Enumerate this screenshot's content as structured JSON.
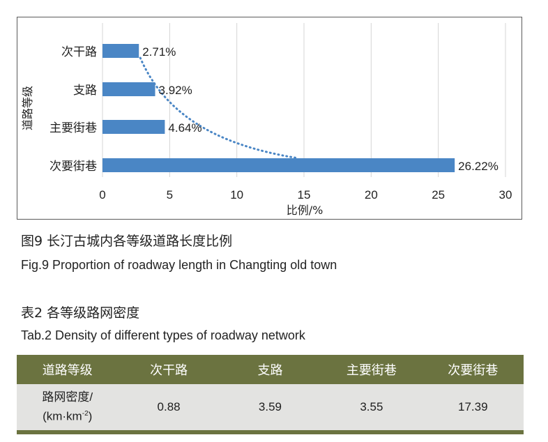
{
  "chart_data": {
    "type": "bar",
    "orientation": "horizontal",
    "categories": [
      "次干路",
      "支路",
      "主要街巷",
      "次要街巷"
    ],
    "values": [
      2.71,
      3.92,
      4.64,
      26.22
    ],
    "value_labels": [
      "2.71%",
      "3.92%",
      "4.64%",
      "26.22%"
    ],
    "xlabel": "比例/%",
    "ylabel": "道路等级",
    "xlim": [
      0,
      30
    ],
    "xticks": [
      "0",
      "5",
      "10",
      "15",
      "20",
      "25",
      "30"
    ],
    "grid": "vertical",
    "trendline": "dotted",
    "bar_color": "#4a86c5"
  },
  "figure_caption_cn": "图9 长汀古城内各等级道路长度比例",
  "figure_caption_en": "Fig.9 Proportion of roadway length in Changting old town",
  "table_caption_cn": "表2 各等级路网密度",
  "table_caption_en": "Tab.2 Density of different types of roadway network",
  "table": {
    "headers": [
      "道路等级",
      "次干路",
      "支路",
      "主要街巷",
      "次要街巷"
    ],
    "row_label_line1": "路网密度/",
    "row_label_line2": "(km·km",
    "row_label_sup": "-2",
    "row_label_close": ")",
    "values": [
      "0.88",
      "3.59",
      "3.55",
      "17.39"
    ]
  },
  "colors": {
    "header_bg": "#6b7340",
    "row_bg": "#e3e3e1",
    "bar": "#4a86c5"
  }
}
